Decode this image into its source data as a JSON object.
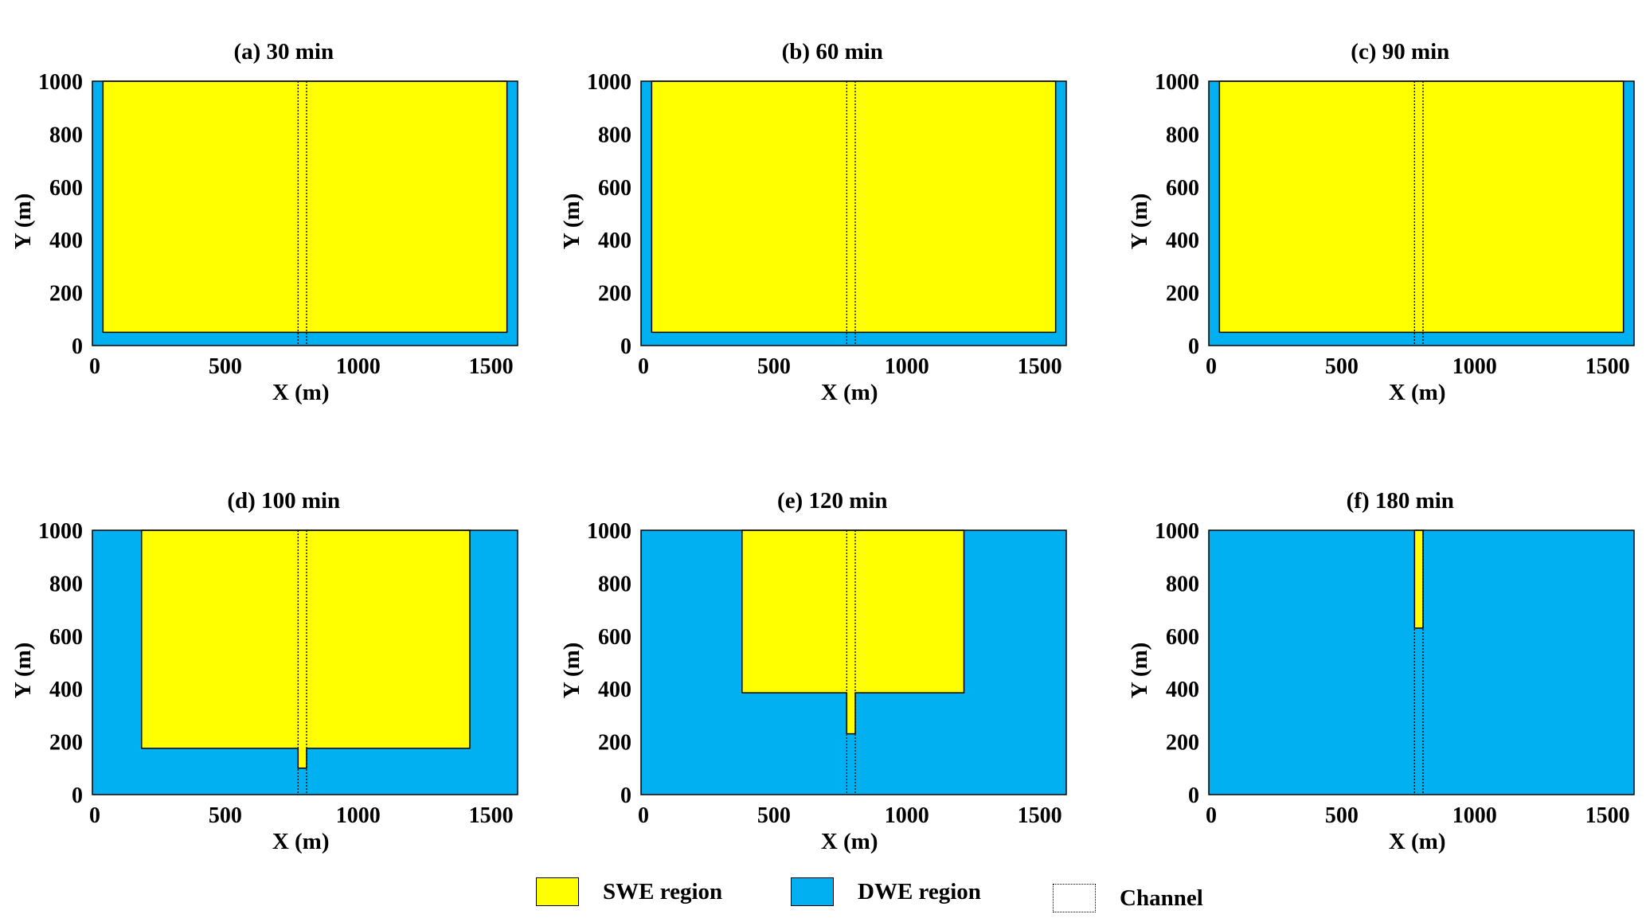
{
  "colors": {
    "swe": "#FFFF00",
    "dwe": "#00B0F0"
  },
  "legend": {
    "swe_label": "SWE region",
    "dwe_label": "DWE region",
    "channel_label": "Channel"
  },
  "chart_data": [
    {
      "type": "area",
      "title": "(a) 30 min",
      "xlabel": "X (m)",
      "ylabel": "Y (m)",
      "xlim": [
        0,
        1600
      ],
      "ylim": [
        0,
        1000
      ],
      "xticks": [
        "0",
        "500",
        "1000",
        "1500"
      ],
      "yticks": [
        "0",
        "200",
        "400",
        "600",
        "800",
        "1000"
      ],
      "channel": {
        "x": [
          774,
          806
        ]
      },
      "swe_region": {
        "x": [
          40,
          1560
        ],
        "y_bottom": 50,
        "channel_tip": null
      }
    },
    {
      "type": "area",
      "title": "(b) 60 min",
      "xlabel": "X (m)",
      "ylabel": "Y (m)",
      "xlim": [
        0,
        1600
      ],
      "ylim": [
        0,
        1000
      ],
      "xticks": [
        "0",
        "500",
        "1000",
        "1500"
      ],
      "yticks": [
        "0",
        "200",
        "400",
        "600",
        "800",
        "1000"
      ],
      "channel": {
        "x": [
          774,
          806
        ]
      },
      "swe_region": {
        "x": [
          40,
          1560
        ],
        "y_bottom": 50,
        "channel_tip": null
      }
    },
    {
      "type": "area",
      "title": "(c) 90 min",
      "xlabel": "X (m)",
      "ylabel": "Y (m)",
      "xlim": [
        0,
        1600
      ],
      "ylim": [
        0,
        1000
      ],
      "xticks": [
        "0",
        "500",
        "1000",
        "1500"
      ],
      "yticks": [
        "0",
        "200",
        "400",
        "600",
        "800",
        "1000"
      ],
      "channel": {
        "x": [
          774,
          806
        ]
      },
      "swe_region": {
        "x": [
          40,
          1560
        ],
        "y_bottom": 50,
        "channel_tip": null
      }
    },
    {
      "type": "area",
      "title": "(d) 100 min",
      "xlabel": "X (m)",
      "ylabel": "Y (m)",
      "xlim": [
        0,
        1600
      ],
      "ylim": [
        0,
        1000
      ],
      "xticks": [
        "0",
        "500",
        "1000",
        "1500"
      ],
      "yticks": [
        "0",
        "200",
        "400",
        "600",
        "800",
        "1000"
      ],
      "channel": {
        "x": [
          774,
          806
        ]
      },
      "swe_region": {
        "x": [
          185,
          1420
        ],
        "y_bottom": 175,
        "channel_tip": 100
      }
    },
    {
      "type": "area",
      "title": "(e) 120 min",
      "xlabel": "X (m)",
      "ylabel": "Y (m)",
      "xlim": [
        0,
        1600
      ],
      "ylim": [
        0,
        1000
      ],
      "xticks": [
        "0",
        "500",
        "1000",
        "1500"
      ],
      "yticks": [
        "0",
        "200",
        "400",
        "600",
        "800",
        "1000"
      ],
      "channel": {
        "x": [
          774,
          806
        ]
      },
      "swe_region": {
        "x": [
          380,
          1215
        ],
        "y_bottom": 385,
        "channel_tip": 230
      }
    },
    {
      "type": "area",
      "title": "(f) 180 min",
      "xlabel": "X (m)",
      "ylabel": "Y (m)",
      "xlim": [
        0,
        1600
      ],
      "ylim": [
        0,
        1000
      ],
      "xticks": [
        "0",
        "500",
        "1000",
        "1500"
      ],
      "yticks": [
        "0",
        "200",
        "400",
        "600",
        "800",
        "1000"
      ],
      "channel": {
        "x": [
          774,
          806
        ]
      },
      "swe_region": {
        "x": null,
        "y_bottom": null,
        "channel_tip": 630
      }
    }
  ]
}
